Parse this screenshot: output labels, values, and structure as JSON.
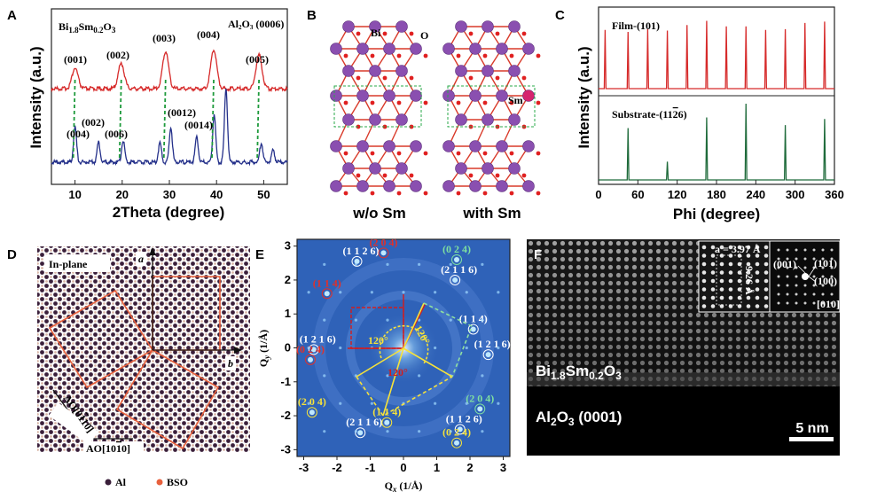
{
  "panel_labels": {
    "a": "A",
    "b": "B",
    "c": "C",
    "d": "D",
    "e": "E",
    "f": "F"
  },
  "colors": {
    "film": "#d62a2a",
    "substrate": "#24308a",
    "substrate_green": "#1f6b3b",
    "guide": "#1e9a3c",
    "bi": "#8a4fb0",
    "sm": "#d6246e",
    "o": "#e02020",
    "bso_lattice": "#e8603c",
    "al": "#3a1f3a",
    "diffraction_bg": "#2f62b8",
    "yellow": "#f6e23a",
    "red_arrow": "#d41c1c"
  },
  "chart_data": [
    {
      "type": "line",
      "panel": "A",
      "xlabel": "2Theta (degree)",
      "ylabel": "Intensity (a.u.)",
      "xlim": [
        5,
        55
      ],
      "xticks": [
        10,
        20,
        30,
        40,
        50
      ],
      "series": [
        {
          "peaks_x": [
            10,
            19.8,
            29.2,
            39.4,
            49.0
          ]
        },
        {
          "peaks_x": [
            10,
            15.0,
            20.2,
            28.0,
            30.3,
            35.8,
            39.5,
            42.0,
            49.5,
            52
          ]
        }
      ],
      "annotations": {
        "compound_pre": "Bi",
        "compound_sub1": "1.8",
        "compound_mid": "Sm",
        "compound_sub2": "0.2",
        "compound_post": "O",
        "compound_sub3": "3",
        "substrate_pre": "Al",
        "substrate_sub1": "2",
        "substrate_mid": "O",
        "substrate_sub2": "3",
        "substrate_post": " (0006)",
        "film_peaks": [
          "(001)",
          "(002)",
          "(003)",
          "(004)",
          "(005)"
        ],
        "sub_peaks": [
          "(002)",
          "(004)",
          "(006)",
          "(0012)",
          "(0014)"
        ]
      }
    },
    {
      "type": "line",
      "panel": "C",
      "xlabel": "Phi (degree)",
      "ylabel": "Intensity (a.u.)",
      "xlim": [
        0,
        360
      ],
      "xticks": [
        0,
        60,
        120,
        180,
        240,
        300,
        360
      ],
      "series": [
        {
          "name": "Film-(101)",
          "peaks_x": [
            10,
            45,
            75,
            105,
            135,
            165,
            195,
            225,
            255,
            285,
            315,
            345
          ],
          "peaks_h": [
            0.85,
            0.82,
            0.86,
            0.84,
            0.92,
            0.98,
            0.9,
            0.9,
            0.85,
            0.86,
            0.95,
            0.97
          ]
        },
        {
          "name_pre": "Substrate-(11",
          "name_bar": "2",
          "name_post": "6)",
          "peaks_x": [
            45,
            105,
            165,
            225,
            285,
            345
          ],
          "peaks_h": [
            0.68,
            0.24,
            0.82,
            1.0,
            0.72,
            0.8
          ]
        }
      ]
    },
    {
      "type": "scatter",
      "panel": "E",
      "xlabel_pre": "Q",
      "xlabel_sub": "x",
      "xlabel_post": " (1/Å)",
      "ylabel_pre": "Q",
      "ylabel_sub": "y",
      "ylabel_post": " (1/Å)",
      "xlim": [
        -3.2,
        3.2
      ],
      "ylim": [
        -3.2,
        3.2
      ],
      "xticks": [
        -3,
        -2,
        -1,
        0,
        1,
        2,
        3
      ],
      "yticks": [
        -3,
        -2,
        -1,
        0,
        1,
        2,
        3
      ],
      "spots": [
        {
          "x": -1.4,
          "y": 2.55,
          "label": "(1 1 2 6)",
          "color": "white"
        },
        {
          "x": 1.55,
          "y": 2.0,
          "label": "(2 1 1 6)",
          "color": "white"
        },
        {
          "x": 1.6,
          "y": 2.6,
          "label": "(0 2 4)",
          "color": "green"
        },
        {
          "x": -0.6,
          "y": 2.8,
          "label": "(2 0 4)",
          "color": "red"
        },
        {
          "x": -2.3,
          "y": 1.6,
          "label": "(1 1 4)",
          "color": "red"
        },
        {
          "x": 2.1,
          "y": 0.55,
          "label": "(1 1 4)",
          "color": "white"
        },
        {
          "x": -2.7,
          "y": -0.05,
          "label": "(1 2 1 6)",
          "color": "white"
        },
        {
          "x": -2.8,
          "y": -0.35,
          "label": "(0 2 4)",
          "color": "red"
        },
        {
          "x": 2.55,
          "y": -0.2,
          "label": "(1 2 1 6)",
          "color": "white"
        },
        {
          "x": -2.75,
          "y": -1.9,
          "label": "(2 0 4)",
          "color": "yellow"
        },
        {
          "x": -1.3,
          "y": -2.5,
          "label": "(2 1 1 6)",
          "color": "white"
        },
        {
          "x": -0.5,
          "y": -2.2,
          "label": "(1 1 4)",
          "color": "yellow"
        },
        {
          "x": 1.7,
          "y": -2.4,
          "label": "(1 1 2 6)",
          "color": "white"
        },
        {
          "x": 2.3,
          "y": -1.8,
          "label": "(2 0 4)",
          "color": "green"
        },
        {
          "x": 1.6,
          "y": -2.8,
          "label": "(0 2 4)",
          "color": "yellow"
        }
      ],
      "angles": [
        "120°",
        "120°",
        "120°"
      ]
    }
  ],
  "panel_b": {
    "caption_left": "w/o Sm",
    "caption_right": "with Sm",
    "label_bi": "Bi",
    "label_o": "O",
    "label_sm": "Sm"
  },
  "panel_d": {
    "title": "In-plane",
    "axis_a": "a",
    "axis_b": "b",
    "ao_vertical_pre": "AO[0",
    "ao_vertical_bar": "1",
    "ao_vertical_post": "10]",
    "ao_horizontal_pre": "AO[10",
    "ao_horizontal_bar": "1",
    "ao_horizontal_post": "0]",
    "legend_al": "Al",
    "legend_bso": "BSO"
  },
  "panel_f": {
    "film_pre": "Bi",
    "film_sub1": "1.8",
    "film_mid": "Sm",
    "film_sub2": "0.2",
    "film_post": "O",
    "film_sub3": "3",
    "sub_pre": "Al",
    "sub_sub1": "2",
    "sub_mid": "O",
    "sub_sub2": "3",
    "sub_post": " (0001)",
    "scale": "5 nm",
    "inset_a": "a = 3.97 Å",
    "inset_c": "9.26 Å",
    "fft_labels": [
      "(001)",
      "(101)",
      "(100)",
      "[010]"
    ]
  }
}
